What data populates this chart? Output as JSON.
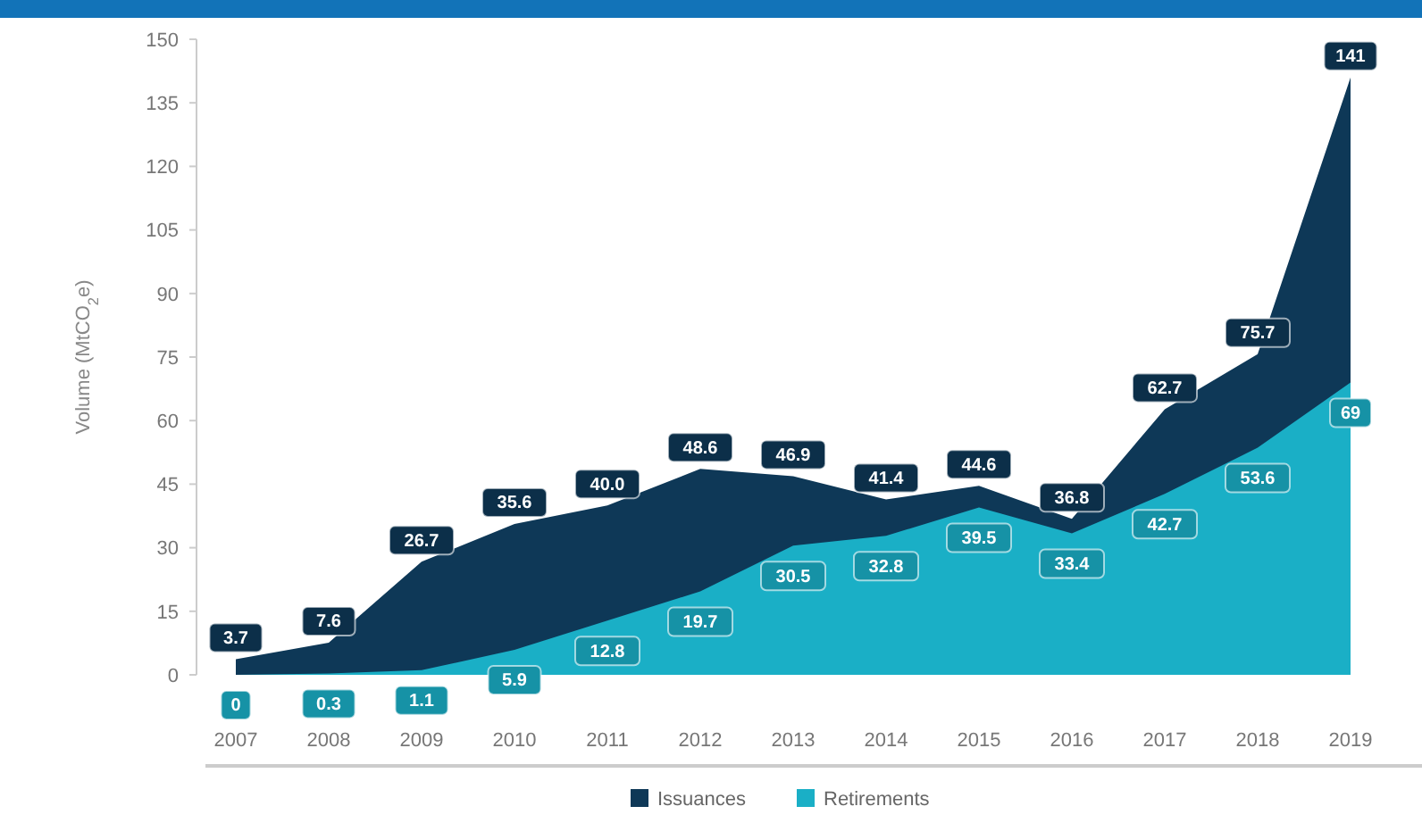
{
  "chart_data": {
    "type": "area",
    "ylabel": "Volume (MtCO$_{2}$e)",
    "categories": [
      "2007",
      "2008",
      "2009",
      "2010",
      "2011",
      "2012",
      "2013",
      "2014",
      "2015",
      "2016",
      "2017",
      "2018",
      "2019"
    ],
    "series": [
      {
        "name": "Issuances",
        "color": "#0e3857",
        "values": [
          3.7,
          7.6,
          26.7,
          35.6,
          40.0,
          48.6,
          46.9,
          41.4,
          44.6,
          36.8,
          62.7,
          75.7,
          141
        ],
        "value_labels": [
          "3.7",
          "7.6",
          "26.7",
          "35.6",
          "40.0",
          "48.6",
          "46.9",
          "41.4",
          "44.6",
          "36.8",
          "62.7",
          "75.7",
          "141"
        ]
      },
      {
        "name": "Retirements",
        "color": "#1aafc6",
        "values": [
          0,
          0.3,
          1.1,
          5.9,
          12.8,
          19.7,
          30.5,
          32.8,
          39.5,
          33.4,
          42.7,
          53.6,
          69
        ],
        "value_labels": [
          "0",
          "0.3",
          "1.1",
          "5.9",
          "12.8",
          "19.7",
          "30.5",
          "32.8",
          "39.5",
          "33.4",
          "42.7",
          "53.6",
          "69"
        ]
      }
    ],
    "ylim": [
      0,
      150
    ],
    "yticks": [
      0,
      15,
      30,
      45,
      60,
      75,
      90,
      105,
      120,
      135,
      150
    ],
    "grid": false,
    "legend": "bottom"
  }
}
